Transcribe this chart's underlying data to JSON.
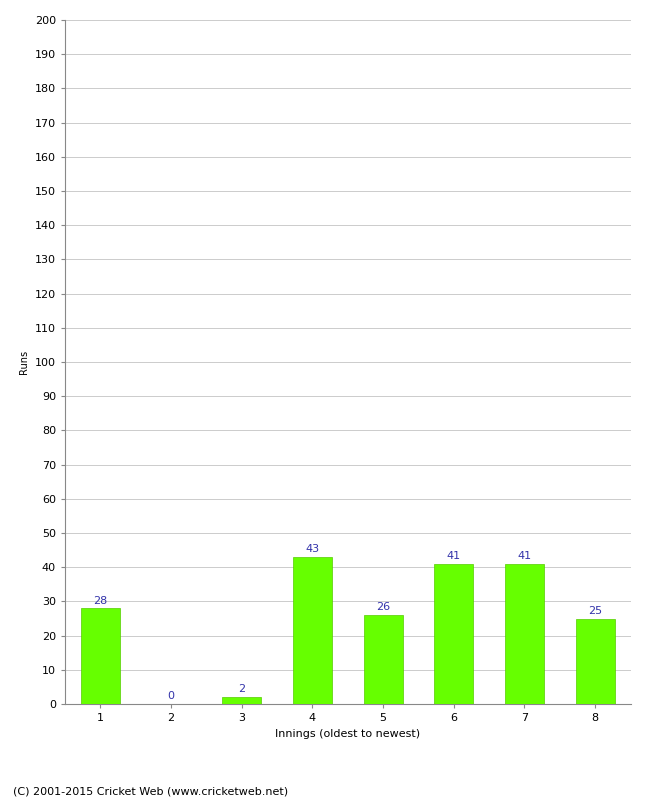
{
  "categories": [
    "1",
    "2",
    "3",
    "4",
    "5",
    "6",
    "7",
    "8"
  ],
  "values": [
    28,
    0,
    2,
    43,
    26,
    41,
    41,
    25
  ],
  "bar_color": "#66ff00",
  "bar_edge_color": "#55cc00",
  "label_color": "#3333aa",
  "xlabel": "Innings (oldest to newest)",
  "ylabel": "Runs",
  "ylim": [
    0,
    200
  ],
  "ytick_step": 10,
  "footer": "(C) 2001-2015 Cricket Web (www.cricketweb.net)",
  "background_color": "#ffffff",
  "grid_color": "#cccccc",
  "label_fontsize": 8,
  "axis_fontsize": 8,
  "ylabel_fontsize": 7,
  "footer_fontsize": 8
}
